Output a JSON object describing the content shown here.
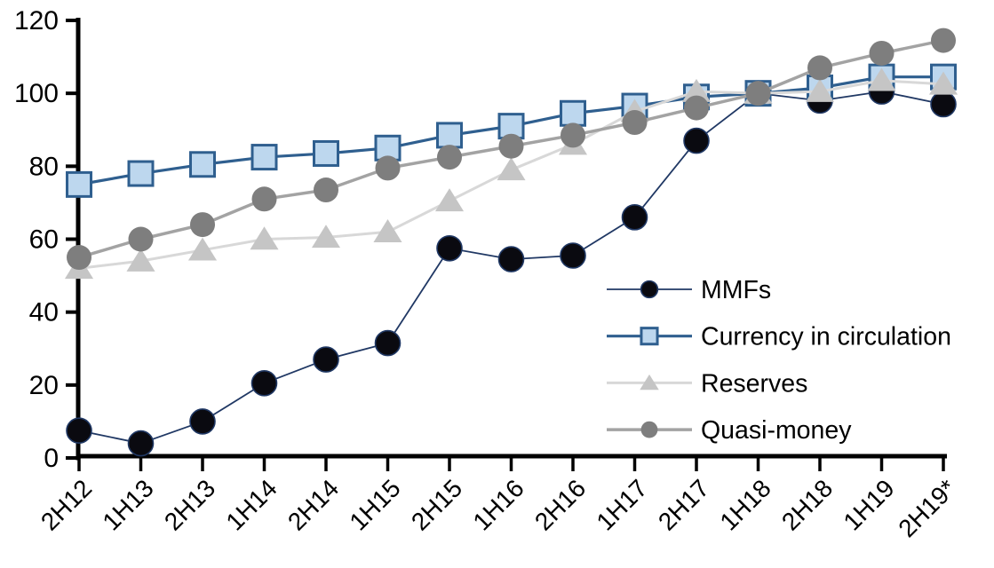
{
  "background": "#FFFFFF",
  "axis_color": "#000000",
  "chart_data": {
    "type": "line",
    "title": "",
    "xlabel": "",
    "ylabel": "",
    "ylim": [
      0,
      120
    ],
    "y_ticks": [
      0,
      20,
      40,
      60,
      80,
      100,
      120
    ],
    "grid": "off",
    "legend_position": "inside-right",
    "x_labels_rotation_deg": 45,
    "categories": [
      "2H12",
      "1H13",
      "2H13",
      "1H14",
      "2H14",
      "1H15",
      "2H15",
      "1H16",
      "2H16",
      "1H17",
      "2H17",
      "1H18",
      "2H18",
      "1H19",
      "2H19*"
    ],
    "series": [
      {
        "name": "MMFs",
        "marker": "circle",
        "marker_fill": "#0A0A10",
        "marker_stroke": "#203864",
        "line_color": "#203864",
        "line_width": 1.8,
        "marker_size": 14,
        "values": [
          7.5,
          4,
          10,
          20.5,
          27,
          31.5,
          57.5,
          54.5,
          55.5,
          66,
          87,
          100,
          98,
          100.5,
          97
        ]
      },
      {
        "name": "Currency in circulation",
        "marker": "square",
        "marker_fill": "#BDD7EE",
        "marker_stroke": "#2F5F8F",
        "line_color": "#2F5F8F",
        "line_width": 3.2,
        "marker_size": 13.5,
        "values": [
          75,
          78,
          80.5,
          82.5,
          83.5,
          85,
          88.5,
          91,
          94.5,
          96.5,
          99,
          100,
          101.5,
          104.5,
          104.5
        ]
      },
      {
        "name": "Reserves",
        "marker": "triangle",
        "marker_fill": "#C5C5C5",
        "marker_stroke": "none",
        "line_color": "#D8D8D8",
        "line_width": 3,
        "marker_size": 15,
        "values": [
          52,
          54,
          57,
          60,
          60.5,
          62,
          70.5,
          79,
          86,
          95,
          100.5,
          100,
          100.5,
          103.5,
          102.5
        ]
      },
      {
        "name": "Quasi-money",
        "marker": "circle",
        "marker_fill": "#7E7E7E",
        "marker_stroke": "none",
        "line_color": "#A3A3A3",
        "line_width": 3.5,
        "marker_size": 14,
        "values": [
          55,
          60,
          64,
          71,
          73.5,
          79.5,
          82.5,
          85.5,
          88.5,
          92,
          96,
          100,
          107,
          111,
          114.5
        ]
      }
    ]
  }
}
